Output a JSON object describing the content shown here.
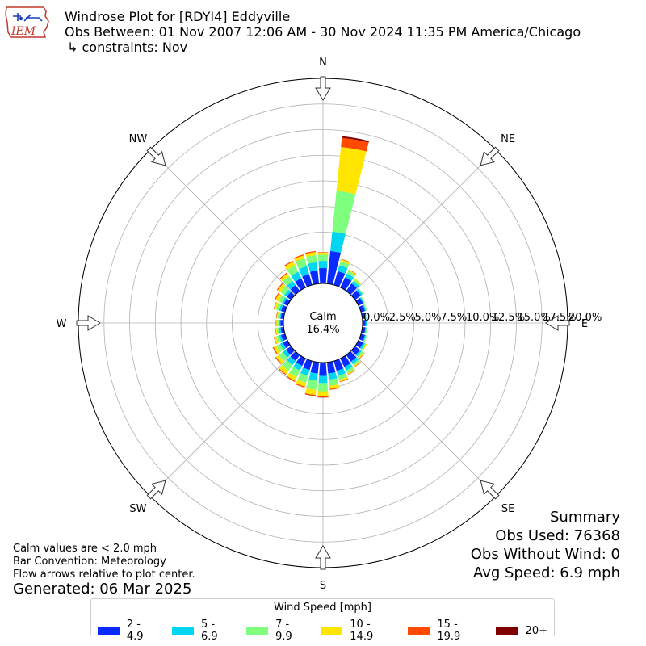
{
  "header": {
    "logo_text": "IEM",
    "title": "Windrose Plot for [RDYI4] Eddyville",
    "subtitle": "Obs Between: 01 Nov 2007 12:06 AM - 30 Nov 2024 11:35 PM America/Chicago",
    "constraints": "↳ constraints: Nov"
  },
  "notes": {
    "calm_note": "Calm values are < 2.0 mph",
    "bar_convention": "Bar Convention: Meteorology",
    "flow_note": "Flow arrows relative to plot center.",
    "generated": "Generated: 06 Mar 2025"
  },
  "summary": {
    "title": "Summary",
    "obs_used": "Obs Used: 76368",
    "obs_without_wind": "Obs Without Wind: 0",
    "avg_speed": "Avg Speed: 6.9 mph"
  },
  "legend": {
    "title": "Wind Speed [mph]",
    "items": [
      {
        "label": "2 - 4.9",
        "color": "#0a2bff"
      },
      {
        "label": "5 - 6.9",
        "color": "#00d5f2"
      },
      {
        "label": "7 - 9.9",
        "color": "#7fff7e"
      },
      {
        "label": "10 - 14.9",
        "color": "#ffe500"
      },
      {
        "label": "15 - 19.9",
        "color": "#ff4a00"
      },
      {
        "label": "20+",
        "color": "#7f0000"
      }
    ]
  },
  "chart_data": {
    "type": "windrose",
    "calm": {
      "label": "Calm",
      "value": "16.4%"
    },
    "radial_ticks": [
      "0.0%",
      "2.5%",
      "5.0%",
      "7.5%",
      "10.0%",
      "12.5%",
      "15.0%",
      "17.5%",
      "20.0%"
    ],
    "radial_max": 20,
    "directions": [
      "N",
      "NE",
      "E",
      "SE",
      "S",
      "SW",
      "W",
      "NW"
    ],
    "bins_deg": [
      0,
      10,
      20,
      30,
      40,
      50,
      60,
      70,
      80,
      90,
      100,
      110,
      120,
      130,
      140,
      150,
      160,
      170,
      180,
      190,
      200,
      210,
      220,
      230,
      240,
      250,
      260,
      270,
      280,
      290,
      300,
      310,
      320,
      330,
      340,
      350
    ],
    "series": [
      {
        "name": "2 - 4.9",
        "values": [
          1.5,
          3.2,
          1.4,
          1.1,
          0.9,
          0.7,
          0.5,
          0.4,
          0.3,
          0.3,
          0.3,
          0.4,
          0.5,
          0.6,
          0.8,
          0.9,
          1.0,
          1.1,
          1.3,
          1.1,
          0.9,
          0.8,
          0.7,
          0.6,
          0.5,
          0.4,
          0.3,
          0.3,
          0.3,
          0.4,
          0.4,
          0.5,
          0.7,
          1.0,
          1.1,
          1.3
        ]
      },
      {
        "name": "5 - 6.9",
        "values": [
          0.7,
          1.9,
          0.6,
          0.4,
          0.3,
          0.2,
          0.1,
          0.1,
          0.1,
          0.1,
          0.1,
          0.1,
          0.2,
          0.2,
          0.3,
          0.4,
          0.5,
          0.6,
          0.7,
          0.7,
          0.6,
          0.5,
          0.5,
          0.4,
          0.3,
          0.2,
          0.2,
          0.1,
          0.1,
          0.2,
          0.2,
          0.3,
          0.5,
          0.7,
          0.8,
          0.8
        ]
      },
      {
        "name": "7 - 9.9",
        "values": [
          0.6,
          4.0,
          0.4,
          0.3,
          0.2,
          0.1,
          0.1,
          0.1,
          0.0,
          0.0,
          0.1,
          0.1,
          0.1,
          0.2,
          0.2,
          0.3,
          0.4,
          0.6,
          0.8,
          0.9,
          0.7,
          0.7,
          0.7,
          0.5,
          0.4,
          0.3,
          0.2,
          0.2,
          0.2,
          0.3,
          0.4,
          0.5,
          0.6,
          0.7,
          0.8,
          0.7
        ]
      },
      {
        "name": "10 - 14.9",
        "values": [
          0.2,
          4.3,
          0.2,
          0.1,
          0.1,
          0.0,
          0.0,
          0.0,
          0.0,
          0.0,
          0.0,
          0.0,
          0.1,
          0.1,
          0.1,
          0.1,
          0.2,
          0.3,
          0.5,
          0.5,
          0.4,
          0.4,
          0.4,
          0.3,
          0.3,
          0.2,
          0.1,
          0.1,
          0.1,
          0.2,
          0.3,
          0.3,
          0.3,
          0.4,
          0.3,
          0.3
        ]
      },
      {
        "name": "15 - 19.9",
        "values": [
          0.05,
          0.9,
          0.05,
          0.05,
          0.0,
          0.0,
          0.0,
          0.0,
          0.0,
          0.0,
          0.0,
          0.0,
          0.0,
          0.05,
          0.05,
          0.05,
          0.05,
          0.1,
          0.1,
          0.1,
          0.1,
          0.1,
          0.1,
          0.1,
          0.1,
          0.05,
          0.05,
          0.05,
          0.05,
          0.05,
          0.1,
          0.1,
          0.1,
          0.1,
          0.1,
          0.1
        ]
      },
      {
        "name": "20+",
        "values": [
          0.0,
          0.15,
          0.0,
          0.0,
          0.0,
          0.0,
          0.0,
          0.0,
          0.0,
          0.0,
          0.0,
          0.0,
          0.0,
          0.0,
          0.0,
          0.0,
          0.0,
          0.0,
          0.02,
          0.02,
          0.0,
          0.0,
          0.0,
          0.0,
          0.0,
          0.0,
          0.0,
          0.0,
          0.0,
          0.0,
          0.0,
          0.0,
          0.0,
          0.0,
          0.0,
          0.0
        ]
      }
    ]
  }
}
